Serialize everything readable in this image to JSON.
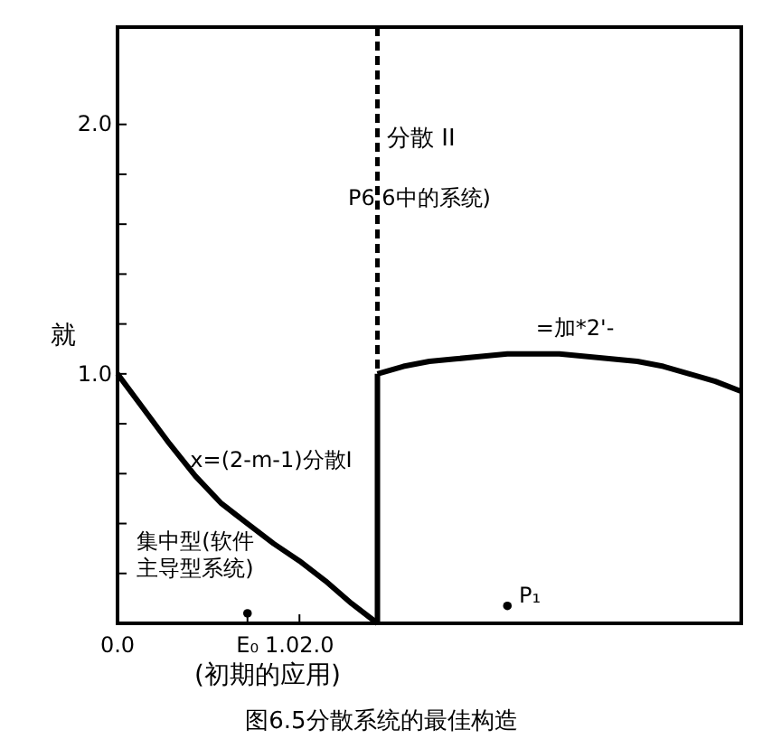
{
  "chart_data": {
    "type": "line",
    "title": "图6.5分散系统的最佳构造",
    "ylabel": "就",
    "xlabel": "(初期的应用)",
    "categories": [
      "0.0",
      null,
      null,
      null,
      null,
      "E₀",
      null,
      "1.02.0",
      null,
      null,
      null,
      null,
      null,
      null,
      null,
      null,
      null,
      null,
      null,
      null,
      null,
      null,
      null,
      null,
      null
    ],
    "ylim": [
      0,
      2.39
    ],
    "yticks": [
      {
        "value": 0.2,
        "label": null
      },
      {
        "value": 0.4,
        "label": null
      },
      {
        "value": 0.6,
        "label": null
      },
      {
        "value": 0.8,
        "label": null
      },
      {
        "value": 1,
        "label": "1.0"
      },
      {
        "value": 1.2,
        "label": null
      },
      {
        "value": 1.4,
        "label": null
      },
      {
        "value": 1.6,
        "label": null
      },
      {
        "value": 1.8,
        "label": null
      },
      {
        "value": 2,
        "label": "2.0"
      }
    ],
    "grid": false,
    "marker": "none",
    "line_style": "solid",
    "series": [
      {
        "color": "#000000",
        "values": [
          1.0,
          0.86,
          0.72,
          0.59,
          0.48,
          0.4,
          0.32,
          0.25,
          0.17,
          0.08,
          0,
          null,
          null,
          null,
          null,
          null,
          null,
          null,
          null,
          null,
          null,
          null,
          null,
          null,
          null
        ]
      },
      {
        "color": "#000000",
        "values": [
          null,
          null,
          null,
          null,
          null,
          null,
          null,
          null,
          null,
          null,
          1.0,
          1.03,
          1.05,
          1.06,
          1.07,
          1.08,
          1.08,
          1.08,
          1.07,
          1.06,
          1.05,
          1.03,
          1.0,
          0.97,
          0.93
        ]
      },
      {
        "type": "scatter",
        "color": "#000000",
        "marker": "circle",
        "values": [
          null,
          null,
          null,
          null,
          null,
          0.04,
          null,
          null,
          null,
          null,
          null,
          null,
          null,
          null,
          null,
          0.07,
          null,
          null,
          null,
          null,
          null,
          null,
          null,
          null,
          null
        ]
      }
    ],
    "annotations": [
      "分散 II",
      "P6.6中的系统)",
      "=加*2'-",
      "x=(2-m-1)分散I",
      "集中型(软件主导型系统)",
      "P₁"
    ]
  }
}
